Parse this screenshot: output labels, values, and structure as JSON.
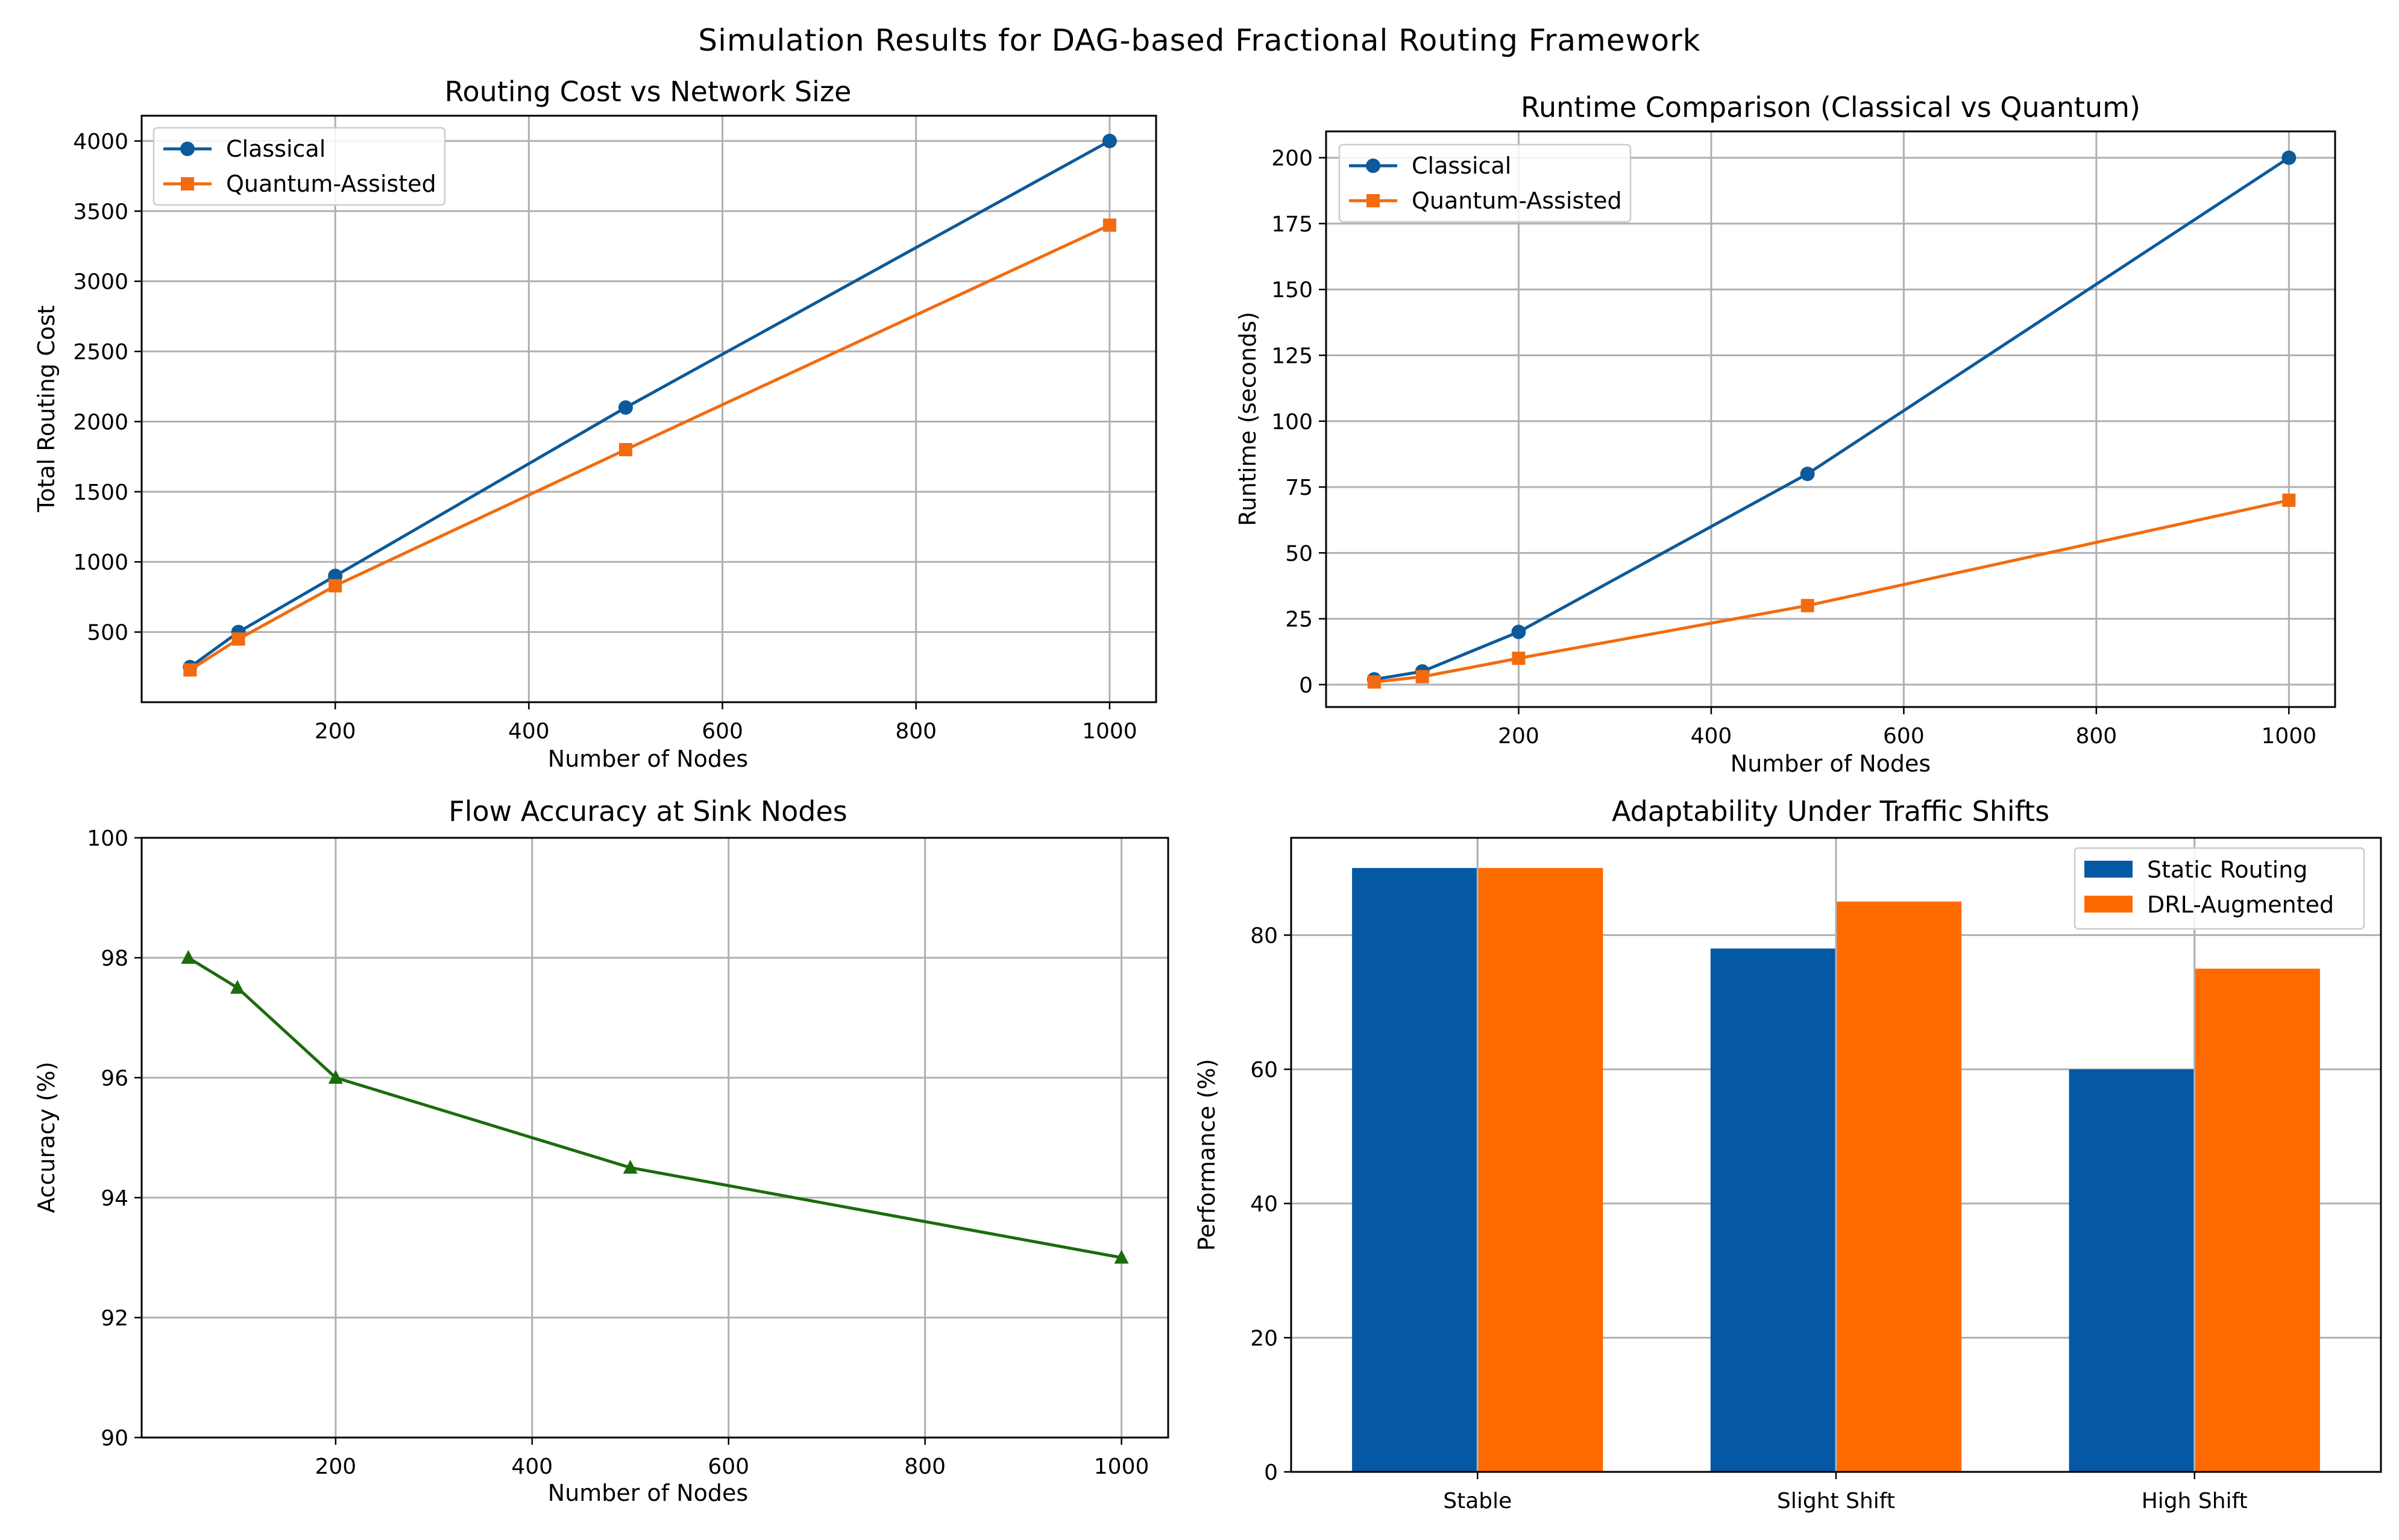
{
  "figure": {
    "suptitle": "Simulation Results for DAG-based Fractional Routing Framework"
  },
  "colors": {
    "blue": "#0d5a9a",
    "orange": "#f26b0f",
    "green": "#1c6b0c",
    "bar_blue": "#0558a3",
    "bar_orange": "#ff6a00",
    "grid": "#b0b0b0"
  },
  "chart_data": [
    {
      "type": "line",
      "title": "Routing Cost vs Network Size",
      "xlabel": "Number of Nodes",
      "ylabel": "Total Routing Cost",
      "x": [
        50,
        100,
        200,
        500,
        1000
      ],
      "xlim": [
        0,
        1048
      ],
      "ylim": [
        0,
        4180
      ],
      "xticks": [
        200,
        400,
        600,
        800,
        1000
      ],
      "yticks": [
        500,
        1000,
        1500,
        2000,
        2500,
        3000,
        3500,
        4000
      ],
      "legend_position": "upper left",
      "series": [
        {
          "name": "Classical",
          "values": [
            250,
            500,
            900,
            2100,
            4000
          ],
          "marker": "circle",
          "color": "#0d5a9a"
        },
        {
          "name": "Quantum-Assisted",
          "values": [
            230,
            450,
            830,
            1800,
            3400
          ],
          "marker": "square",
          "color": "#f26b0f"
        }
      ]
    },
    {
      "type": "line",
      "title": "Runtime Comparison (Classical vs Quantum)",
      "xlabel": "Number of Nodes",
      "ylabel": "Runtime (seconds)",
      "x": [
        50,
        100,
        200,
        500,
        1000
      ],
      "xlim": [
        0,
        1048
      ],
      "ylim": [
        -8.5,
        210
      ],
      "xticks": [
        200,
        400,
        600,
        800,
        1000
      ],
      "yticks": [
        0,
        25,
        50,
        75,
        100,
        125,
        150,
        175,
        200
      ],
      "legend_position": "upper left",
      "series": [
        {
          "name": "Classical",
          "values": [
            2,
            5,
            20,
            80,
            200
          ],
          "marker": "circle",
          "color": "#0d5a9a"
        },
        {
          "name": "Quantum-Assisted",
          "values": [
            1,
            3,
            10,
            30,
            70
          ],
          "marker": "square",
          "color": "#f26b0f"
        }
      ]
    },
    {
      "type": "line",
      "title": "Flow Accuracy at Sink Nodes",
      "xlabel": "Number of Nodes",
      "ylabel": "Accuracy (%)",
      "x": [
        50,
        100,
        200,
        500,
        1000
      ],
      "xlim": [
        2.5,
        1047.5
      ],
      "ylim": [
        90,
        100
      ],
      "xticks": [
        200,
        400,
        600,
        800,
        1000
      ],
      "yticks": [
        90,
        92,
        94,
        96,
        98,
        100
      ],
      "series": [
        {
          "name": "Accuracy",
          "values": [
            98.0,
            97.5,
            96.0,
            94.5,
            93.0
          ],
          "marker": "triangle",
          "color": "#1c6b0c"
        }
      ]
    },
    {
      "type": "bar",
      "title": "Adaptability Under Traffic Shifts",
      "xlabel": "",
      "ylabel": "Performance (%)",
      "categories": [
        "Stable",
        "Slight Shift",
        "High Shift"
      ],
      "ylim": [
        0,
        94.5
      ],
      "yticks": [
        0,
        20,
        40,
        60,
        80
      ],
      "legend_position": "upper right",
      "series": [
        {
          "name": "Static Routing",
          "values": [
            90,
            78,
            60
          ],
          "color": "#0558a3"
        },
        {
          "name": "DRL-Augmented",
          "values": [
            90,
            85,
            75
          ],
          "color": "#ff6a00"
        }
      ]
    }
  ]
}
